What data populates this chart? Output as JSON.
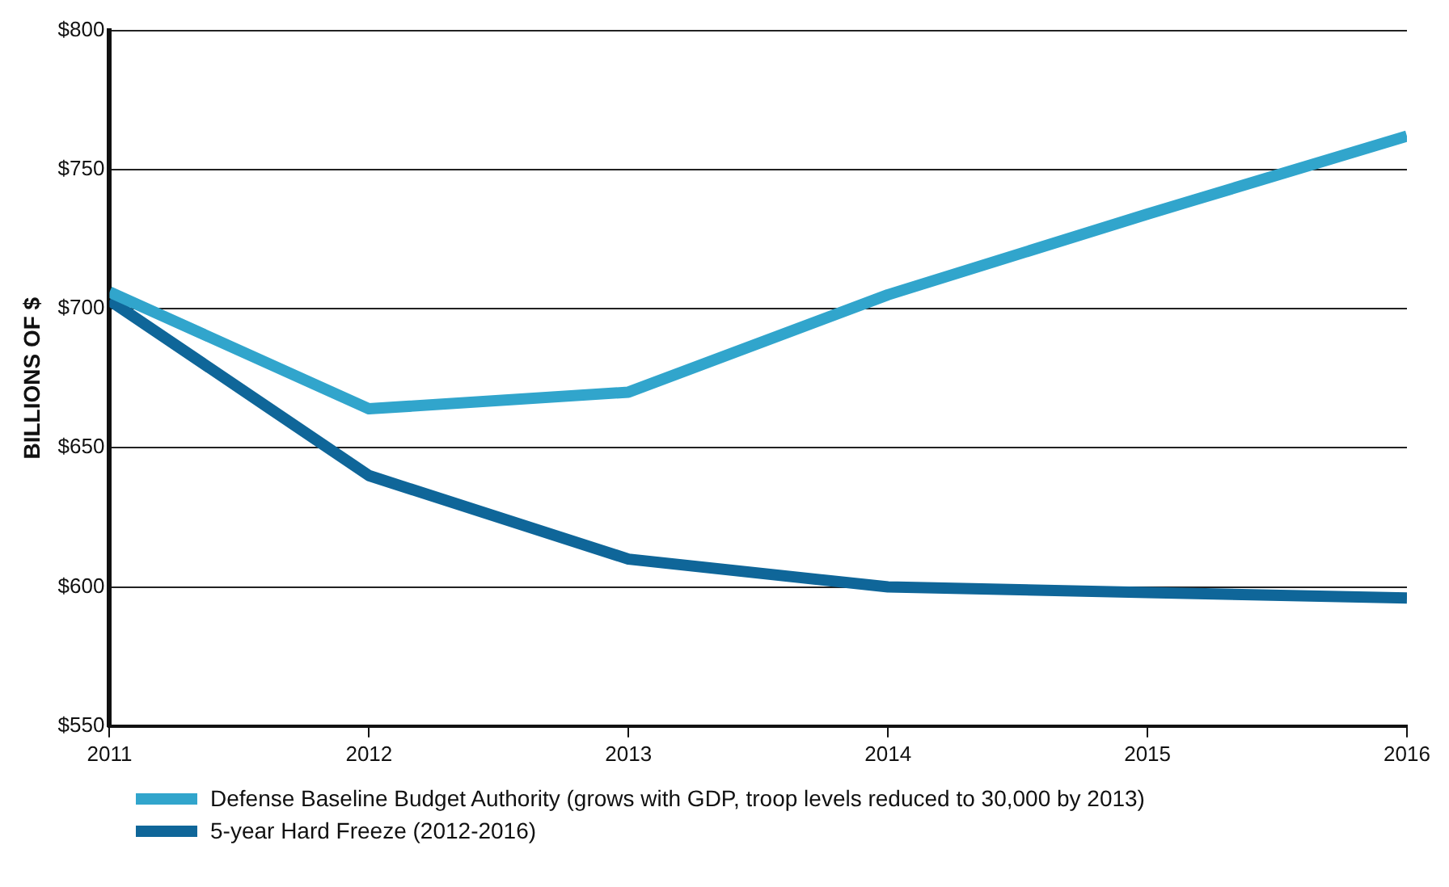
{
  "chart_data": {
    "type": "line",
    "ylabel": "BILLIONS OF $",
    "x": [
      2011,
      2012,
      2013,
      2014,
      2015,
      2016
    ],
    "series": [
      {
        "name": "Defense Baseline Budget Authority (grows with GDP, troop levels reduced to 30,000 by 2013)",
        "color": "#31a5cc",
        "values": [
          706,
          664,
          670,
          705,
          734,
          762
        ]
      },
      {
        "name": "5-year Hard Freeze (2012-2016)",
        "color": "#0f6699",
        "values": [
          703,
          640,
          610,
          600,
          598,
          596
        ]
      }
    ],
    "xlim": [
      2011,
      2016
    ],
    "xticks": [
      2011,
      2012,
      2013,
      2014,
      2015,
      2016
    ],
    "ylim": [
      550,
      800
    ],
    "yticks": [
      {
        "value": 550,
        "label": "$550"
      },
      {
        "value": 600,
        "label": "$600"
      },
      {
        "value": 650,
        "label": "$650"
      },
      {
        "value": 700,
        "label": "$700"
      },
      {
        "value": 750,
        "label": "$750"
      },
      {
        "value": 800,
        "label": "$800"
      }
    ],
    "grid": "y",
    "legend": "bottom",
    "marker": "none",
    "line_style": "solid"
  }
}
